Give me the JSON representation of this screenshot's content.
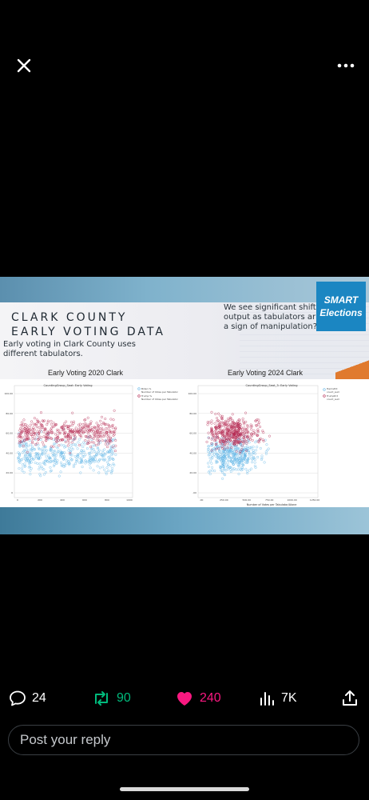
{
  "media": {
    "banner_title_line1": "CLARK COUNTY",
    "banner_title_line2": "EARLY VOTING DATA",
    "banner_subtitle": "Early voting in Clark County uses different tabulators.",
    "quote_text": "We see significant shift output as tabulators ar a sign of manipulation?",
    "logo_line1": "SMART",
    "logo_line2": "Elections",
    "left_chart_caption": "Early Voting 2020 Clark",
    "right_chart_caption": "Early Voting 2024 Clark",
    "left_plot_title": "CountingGroup_Seat: Early Voting",
    "right_plot_title": "CountingGroup_Seat_3: Early Voting",
    "left_legend": [
      "Biden %",
      "Number of Votes per Tabulator",
      "Trump %",
      "Number of Votes per Tabulator"
    ],
    "right_legend": [
      "HarrisPct",
      "count_sum",
      "TrumpPct",
      "count_sum"
    ],
    "right_xlabel": "Number of Votes per Tabulator/Alone",
    "left_x_ticks": [
      "0",
      "200",
      "400",
      "600",
      "800",
      "1000"
    ],
    "left_y_ticks": [
      "100.00",
      "80.00",
      "60.00",
      "40.00",
      "20.00",
      "0"
    ],
    "right_x_ticks": [
      ".00",
      "250.00",
      "500.00",
      "750.00",
      "1000.00",
      "1250.00"
    ],
    "right_y_ticks": [
      "100.00",
      "80.00",
      "60.00",
      "40.00",
      "20.00",
      ".00"
    ],
    "colors": {
      "blue_series": "#5fb4e6",
      "red_series": "#b3244d"
    }
  },
  "actions": {
    "replies": "24",
    "reposts": "90",
    "likes": "240",
    "views": "7K"
  },
  "reply": {
    "placeholder": "Post your reply"
  }
}
